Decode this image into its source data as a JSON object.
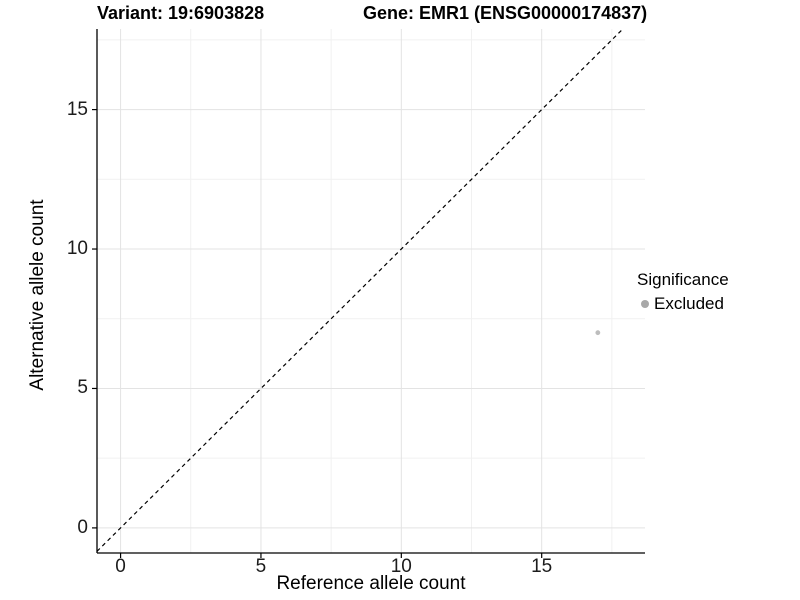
{
  "titles": {
    "left": "Variant: 19:6903828",
    "right": "Gene: EMR1 (ENSG00000174837)"
  },
  "chart_data": {
    "type": "scatter",
    "title": "Variant: 19:6903828   Gene: EMR1 (ENSG00000174837)",
    "xlabel": "Reference allele count",
    "ylabel": "Alternative allele count",
    "xlim": [
      -0.84,
      18.68
    ],
    "ylim": [
      -0.9,
      17.89
    ],
    "x_ticks": [
      0,
      5,
      10,
      15
    ],
    "y_ticks": [
      0,
      5,
      10,
      15
    ],
    "x_minor_ticks": [
      2.5,
      7.5,
      12.5,
      17.5
    ],
    "y_minor_ticks": [
      2.5,
      7.5,
      12.5,
      17.5
    ],
    "grid": true,
    "points": [
      {
        "x": 17,
        "y": 7,
        "series": "Excluded"
      }
    ],
    "reference_line": {
      "kind": "identity",
      "style": "dashed",
      "color": "#000000"
    },
    "legend": {
      "title": "Significance",
      "position": "right",
      "items": [
        {
          "label": "Excluded",
          "color": "#a8a8a8"
        }
      ]
    },
    "colors": {
      "point": "#bdbdbd",
      "grid_major": "#e3e3e3",
      "grid_minor": "#f1f1f1",
      "axis": "#000000",
      "tick_text": "#1c1c1c"
    }
  }
}
